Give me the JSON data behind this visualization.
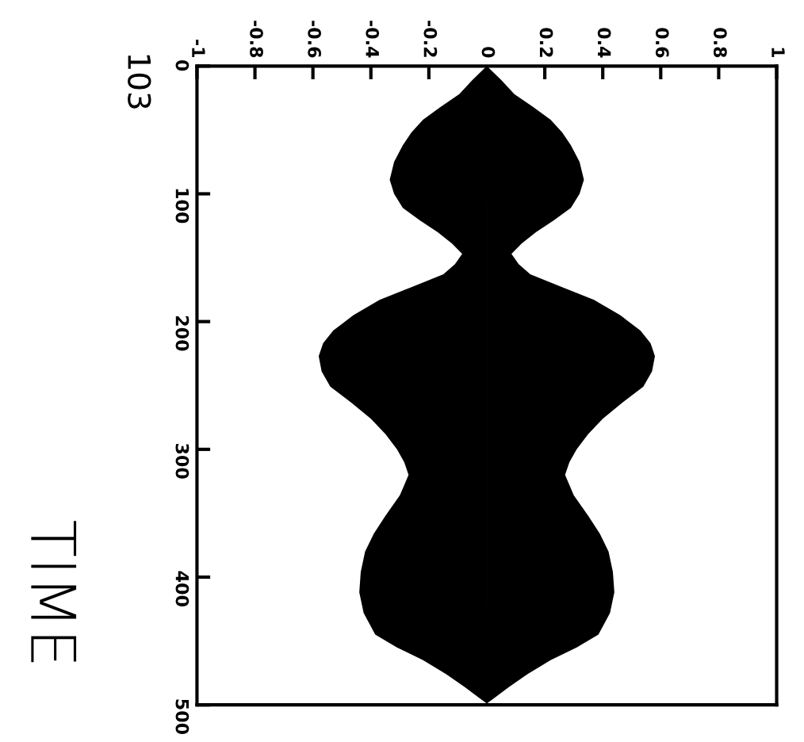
{
  "chart_data": {
    "type": "area",
    "title": "103",
    "ylabel": "TIME",
    "orientation": "horizontal",
    "x": [
      0,
      11,
      22,
      32,
      42,
      52,
      62,
      75,
      89,
      100,
      111,
      121,
      130,
      139,
      147,
      155,
      163,
      173,
      183,
      195,
      207,
      217,
      227,
      239,
      251,
      263,
      276,
      288,
      300,
      310,
      320,
      336,
      352,
      366,
      380,
      396,
      412,
      428,
      445,
      455,
      465,
      476,
      486,
      493,
      499
    ],
    "series": [
      {
        "color": "#000000",
        "values": [
          0,
          0.05,
          0.095,
          0.16,
          0.22,
          0.26,
          0.29,
          0.32,
          0.335,
          0.32,
          0.29,
          0.23,
          0.17,
          0.12,
          0.085,
          0.11,
          0.15,
          0.26,
          0.37,
          0.46,
          0.53,
          0.565,
          0.58,
          0.57,
          0.54,
          0.47,
          0.4,
          0.35,
          0.31,
          0.285,
          0.27,
          0.3,
          0.35,
          0.39,
          0.42,
          0.435,
          0.44,
          0.425,
          0.385,
          0.31,
          0.22,
          0.14,
          0.076,
          0.035,
          0
        ]
      },
      {
        "color": "#000000",
        "values": [
          0,
          -0.05,
          -0.095,
          -0.16,
          -0.22,
          -0.26,
          -0.29,
          -0.32,
          -0.335,
          -0.32,
          -0.29,
          -0.23,
          -0.17,
          -0.12,
          -0.085,
          -0.11,
          -0.15,
          -0.26,
          -0.37,
          -0.46,
          -0.53,
          -0.565,
          -0.58,
          -0.57,
          -0.54,
          -0.47,
          -0.4,
          -0.35,
          -0.31,
          -0.285,
          -0.27,
          -0.3,
          -0.35,
          -0.39,
          -0.42,
          -0.435,
          -0.44,
          -0.425,
          -0.385,
          -0.31,
          -0.22,
          -0.14,
          -0.076,
          -0.035,
          0
        ]
      }
    ],
    "xlim": [
      -1,
      1
    ],
    "xticks": [
      -1,
      -0.8,
      -0.6,
      -0.4,
      -0.2,
      0,
      0.2,
      0.4,
      0.6,
      0.8,
      1
    ],
    "ylim": [
      500,
      0
    ],
    "yticks": [
      0,
      100,
      200,
      300,
      400,
      500
    ],
    "grid": false,
    "legend": false
  }
}
